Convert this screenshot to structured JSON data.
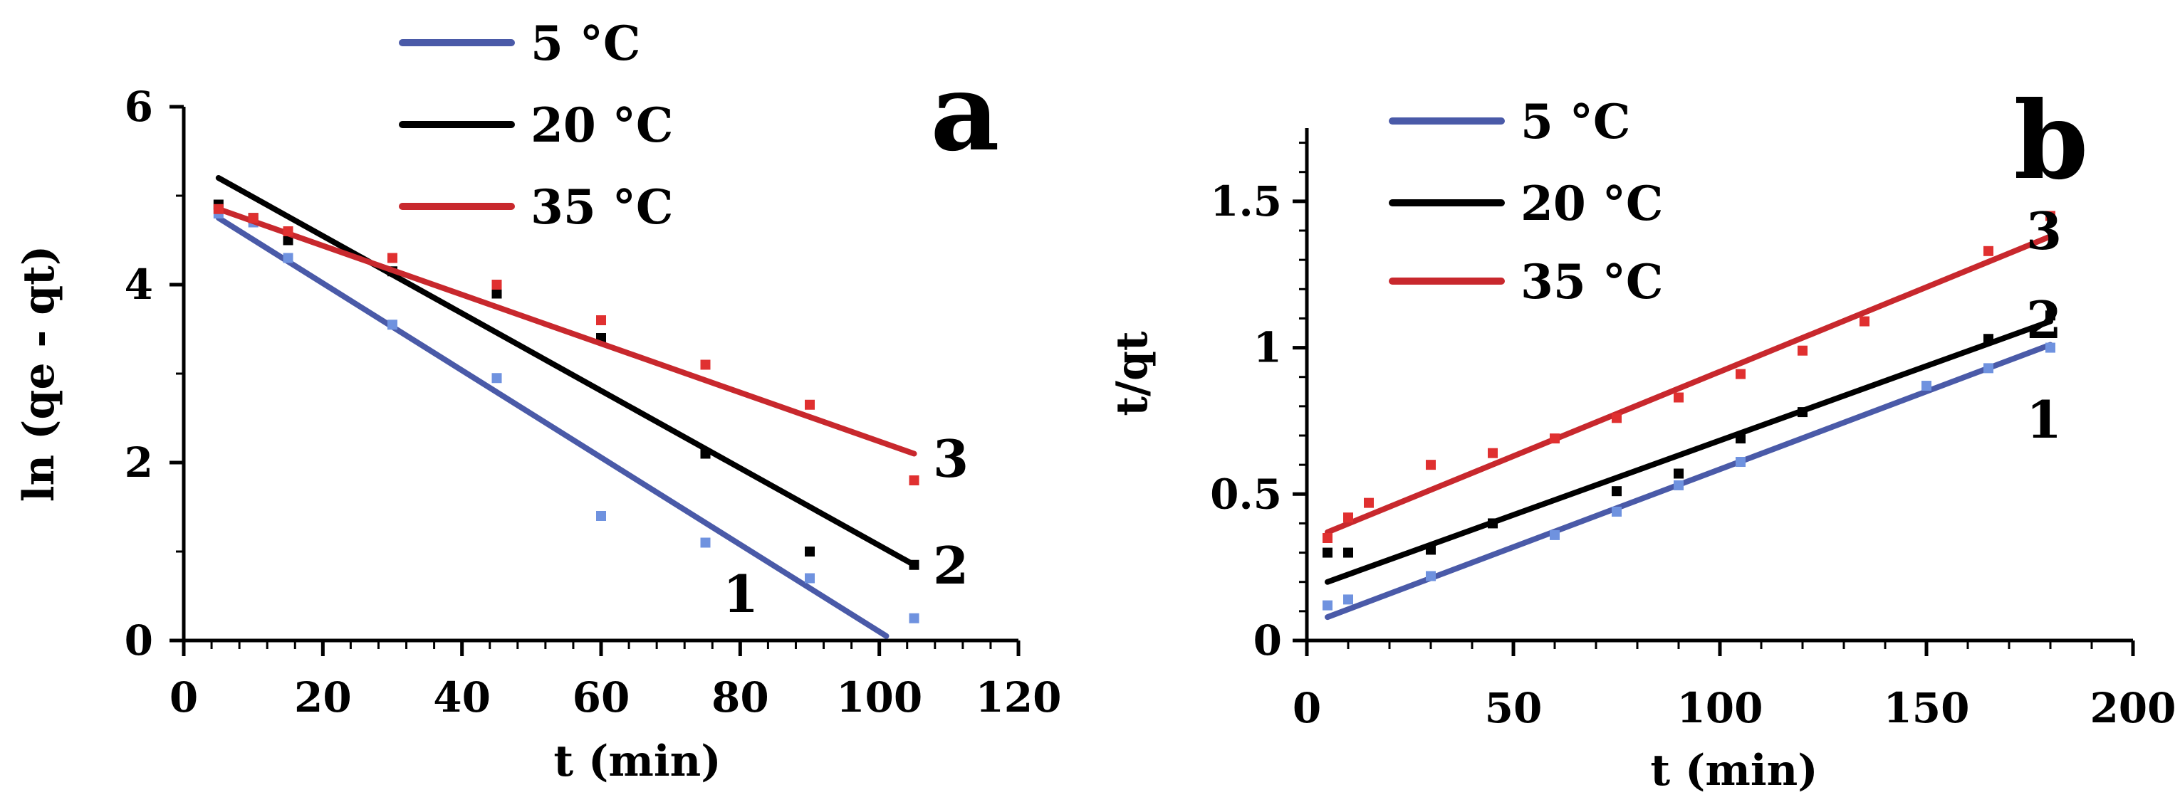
{
  "chart_data": [
    {
      "type": "scatter",
      "panel": "a",
      "title": "",
      "xlabel": "t (min)",
      "ylabel": "ln (qe - qt)",
      "xlim": [
        0,
        120
      ],
      "ylim": [
        0,
        6
      ],
      "xticks": [
        "0",
        "20",
        "40",
        "60",
        "80",
        "100",
        "120"
      ],
      "yticks": [
        "0",
        "2",
        "4",
        "6"
      ],
      "grid": false,
      "legend_position": "top-left",
      "series": [
        {
          "name": "5 °C",
          "label": "1",
          "color": "#4a5aa8",
          "point_color": "#6f92df",
          "x": [
            5,
            10,
            15,
            30,
            45,
            60,
            75,
            90,
            105
          ],
          "y": [
            4.8,
            4.7,
            4.3,
            3.55,
            2.95,
            1.4,
            1.1,
            0.7,
            0.25
          ],
          "fit": {
            "x": [
              5,
              101
            ],
            "y": [
              4.75,
              0.05
            ]
          }
        },
        {
          "name": "20 °C",
          "label": "2",
          "color": "#000000",
          "point_color": "#000000",
          "x": [
            5,
            10,
            15,
            30,
            45,
            60,
            75,
            90,
            105
          ],
          "y": [
            4.9,
            4.75,
            4.5,
            4.15,
            3.9,
            3.4,
            2.1,
            1.0,
            0.85
          ],
          "fit": {
            "x": [
              5,
              105
            ],
            "y": [
              5.2,
              0.85
            ]
          }
        },
        {
          "name": "35 °C",
          "label": "3",
          "color": "#c8282d",
          "point_color": "#e03030",
          "x": [
            5,
            10,
            15,
            30,
            45,
            60,
            75,
            90,
            105
          ],
          "y": [
            4.85,
            4.75,
            4.6,
            4.3,
            4.0,
            3.6,
            3.1,
            2.65,
            1.8
          ],
          "fit": {
            "x": [
              5,
              105
            ],
            "y": [
              4.85,
              2.1
            ]
          }
        }
      ]
    },
    {
      "type": "scatter",
      "panel": "b",
      "title": "",
      "xlabel": "t (min)",
      "ylabel": "t/qt",
      "xlim": [
        0,
        200
      ],
      "ylim": [
        0,
        1.75
      ],
      "xticks": [
        "0",
        "50",
        "100",
        "150",
        "200"
      ],
      "yticks": [
        "0",
        "0.5",
        "1",
        "1.5"
      ],
      "grid": false,
      "legend_position": "top-left",
      "series": [
        {
          "name": "5 °C",
          "label": "1",
          "color": "#4a5aa8",
          "point_color": "#6f92df",
          "x": [
            5,
            10,
            30,
            60,
            75,
            90,
            105,
            150,
            165,
            180
          ],
          "y": [
            0.12,
            0.14,
            0.22,
            0.36,
            0.44,
            0.53,
            0.61,
            0.87,
            0.93,
            1.0
          ],
          "fit": {
            "x": [
              5,
              180
            ],
            "y": [
              0.08,
              1.01
            ]
          }
        },
        {
          "name": "20 °C",
          "label": "2",
          "color": "#000000",
          "point_color": "#000000",
          "x": [
            5,
            10,
            30,
            45,
            75,
            90,
            105,
            120,
            165,
            180
          ],
          "y": [
            0.3,
            0.3,
            0.31,
            0.4,
            0.51,
            0.57,
            0.69,
            0.78,
            1.03,
            1.11
          ],
          "fit": {
            "x": [
              5,
              180
            ],
            "y": [
              0.2,
              1.09
            ]
          }
        },
        {
          "name": "35 °C",
          "label": "3",
          "color": "#c8282d",
          "point_color": "#e03030",
          "x": [
            5,
            10,
            15,
            30,
            45,
            60,
            75,
            90,
            105,
            120,
            135,
            165,
            180
          ],
          "y": [
            0.35,
            0.42,
            0.47,
            0.6,
            0.64,
            0.69,
            0.76,
            0.83,
            0.91,
            0.99,
            1.09,
            1.33,
            1.45
          ],
          "fit": {
            "x": [
              5,
              180
            ],
            "y": [
              0.37,
              1.38
            ]
          }
        }
      ]
    }
  ]
}
